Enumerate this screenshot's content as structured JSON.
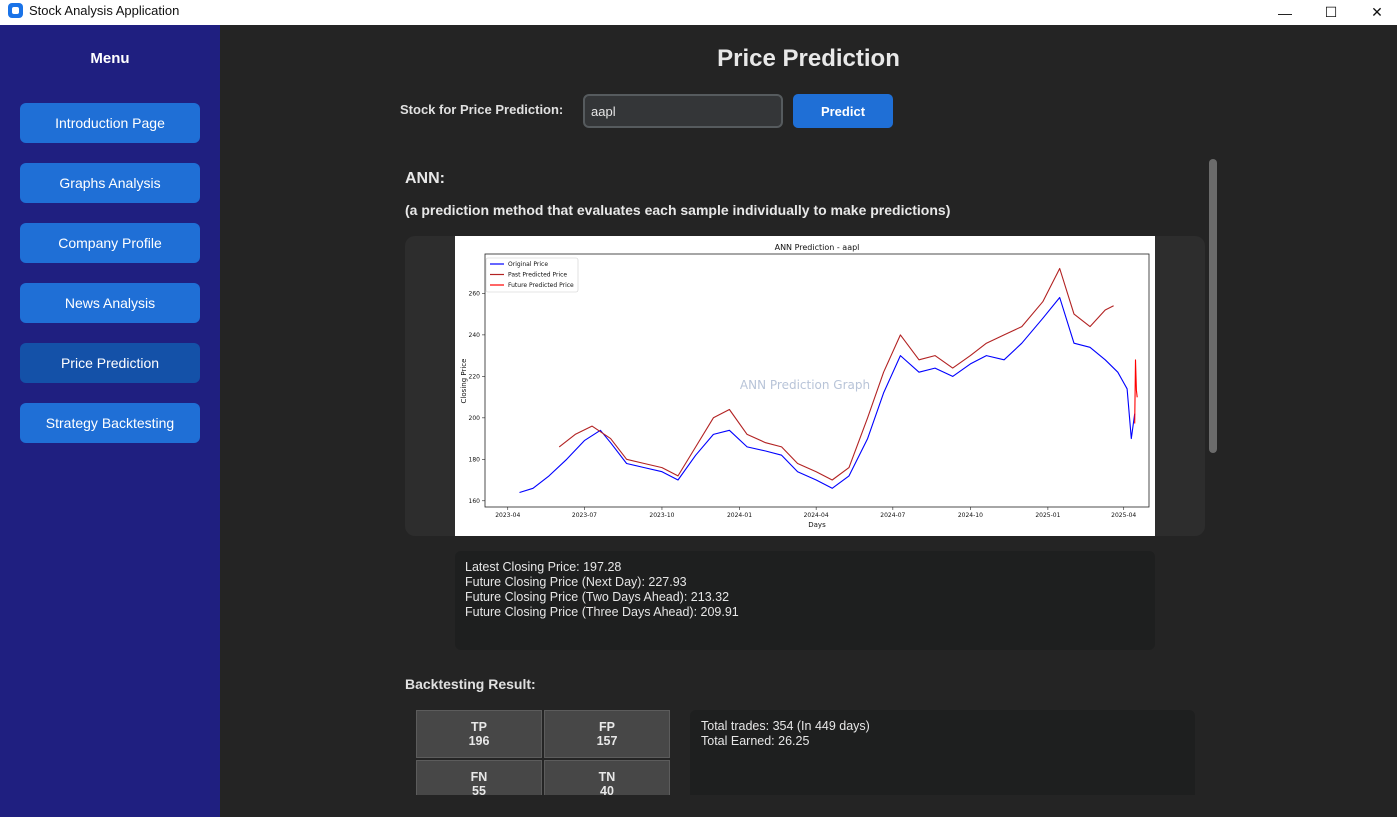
{
  "window": {
    "title": "Stock Analysis Application",
    "minimize_glyph": "—",
    "maximize_glyph": "☐",
    "close_glyph": "✕"
  },
  "sidebar": {
    "title": "Menu",
    "items": [
      {
        "label": "Introduction Page"
      },
      {
        "label": "Graphs Analysis"
      },
      {
        "label": "Company Profile"
      },
      {
        "label": "News Analysis"
      },
      {
        "label": "Price Prediction",
        "active": true
      },
      {
        "label": "Strategy Backtesting"
      }
    ]
  },
  "header": {
    "title": "Price Prediction",
    "stock_label": "Stock for Price Prediction:",
    "stock_value": "aapl",
    "predict_label": "Predict"
  },
  "model": {
    "name": "ANN:",
    "description": "(a prediction method that evaluates each sample individually to make predictions)"
  },
  "chart_data": {
    "type": "line",
    "title": "ANN Prediction - aapl",
    "watermark": "ANN Prediction Graph",
    "xlabel": "Days",
    "ylabel": "Closing Price",
    "x_ticks": [
      "2023-04",
      "2023-07",
      "2023-10",
      "2024-01",
      "2024-04",
      "2024-07",
      "2024-10",
      "2025-01",
      "2025-04"
    ],
    "y_ticks": [
      160,
      180,
      200,
      220,
      240,
      260
    ],
    "ylim": [
      157,
      279
    ],
    "legend_position": "upper-left",
    "series": [
      {
        "name": "Original Price",
        "color": "#0000ff",
        "x": [
          "2023-04-15",
          "2023-05-01",
          "2023-05-20",
          "2023-06-10",
          "2023-07-01",
          "2023-07-20",
          "2023-08-01",
          "2023-08-20",
          "2023-09-10",
          "2023-10-01",
          "2023-10-20",
          "2023-11-10",
          "2023-12-01",
          "2023-12-20",
          "2024-01-10",
          "2024-02-01",
          "2024-02-20",
          "2024-03-10",
          "2024-04-01",
          "2024-04-20",
          "2024-05-10",
          "2024-06-01",
          "2024-06-20",
          "2024-07-10",
          "2024-08-01",
          "2024-08-20",
          "2024-09-10",
          "2024-10-01",
          "2024-10-20",
          "2024-11-10",
          "2024-12-01",
          "2024-12-26",
          "2025-01-15",
          "2025-02-01",
          "2025-02-20",
          "2025-03-10",
          "2025-03-25",
          "2025-04-05",
          "2025-04-10",
          "2025-04-14"
        ],
        "y": [
          164,
          166,
          172,
          180,
          189,
          194,
          188,
          178,
          176,
          174,
          170,
          182,
          192,
          194,
          186,
          184,
          182,
          174,
          170,
          166,
          172,
          190,
          212,
          230,
          222,
          224,
          220,
          226,
          230,
          228,
          236,
          248,
          258,
          236,
          234,
          228,
          222,
          214,
          190,
          202
        ]
      },
      {
        "name": "Past Predicted Price",
        "color": "#b22222",
        "x": [
          "2023-06-01",
          "2023-06-20",
          "2023-07-10",
          "2023-08-01",
          "2023-08-20",
          "2023-09-10",
          "2023-10-01",
          "2023-10-20",
          "2023-11-10",
          "2023-12-01",
          "2023-12-20",
          "2024-01-10",
          "2024-02-01",
          "2024-02-20",
          "2024-03-10",
          "2024-04-01",
          "2024-04-20",
          "2024-05-10",
          "2024-06-01",
          "2024-06-20",
          "2024-07-10",
          "2024-08-01",
          "2024-08-20",
          "2024-09-10",
          "2024-10-01",
          "2024-10-20",
          "2024-11-10",
          "2024-12-01",
          "2024-12-26",
          "2025-01-15",
          "2025-02-01",
          "2025-02-20",
          "2025-03-10",
          "2025-03-20"
        ],
        "y": [
          186,
          192,
          196,
          190,
          180,
          178,
          176,
          172,
          186,
          200,
          204,
          192,
          188,
          186,
          178,
          174,
          170,
          176,
          200,
          222,
          240,
          228,
          230,
          224,
          230,
          236,
          240,
          244,
          256,
          272,
          250,
          244,
          252,
          254
        ]
      },
      {
        "name": "Future Predicted Price",
        "color": "#ff0000",
        "x": [
          "2025-04-14",
          "2025-04-15",
          "2025-04-16",
          "2025-04-17"
        ],
        "y": [
          197.28,
          227.93,
          213.32,
          209.91
        ]
      }
    ]
  },
  "results": {
    "latest": "Latest Closing Price: 197.28",
    "next_day": "Future Closing Price (Next Day): 227.93",
    "two_days": "Future Closing Price (Two Days Ahead): 213.32",
    "three_days": "Future Closing Price (Three Days Ahead): 209.91"
  },
  "backtest": {
    "title": "Backtesting Result:",
    "matrix": {
      "tp": {
        "label": "TP",
        "value": "196"
      },
      "fp": {
        "label": "FP",
        "value": "157"
      },
      "fn": {
        "label": "FN",
        "value": "55"
      },
      "tn": {
        "label": "TN",
        "value": "40"
      }
    },
    "total_trades": "Total trades: 354 (In 449 days)",
    "total_earned": "Total Earned: 26.25"
  }
}
